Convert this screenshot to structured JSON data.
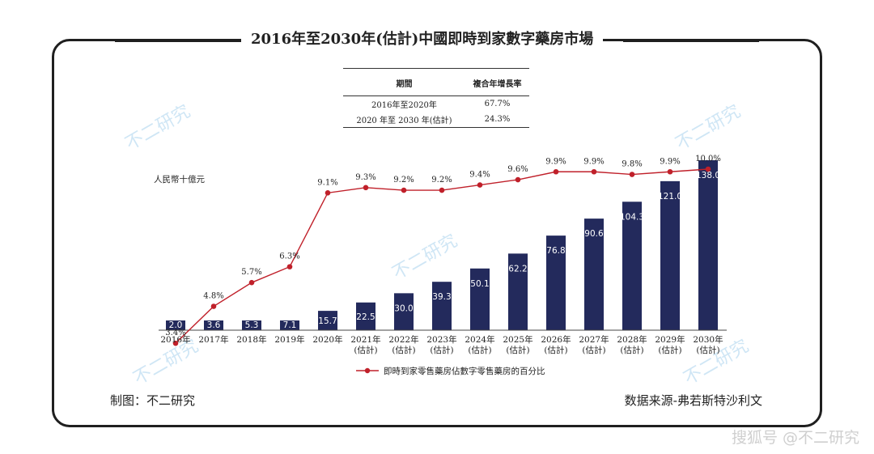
{
  "header": {
    "title": "2016年至2030年(估計)中國即時到家數字藥房市場"
  },
  "cagr_table": {
    "headers": [
      "期間",
      "複合年增長率"
    ],
    "rows": [
      [
        "2016年至2020年",
        "67.7%"
      ],
      [
        "2020 年至 2030 年(估計)",
        "24.3%"
      ]
    ]
  },
  "chart_data": {
    "type": "bar",
    "categories": [
      "2016年",
      "2017年",
      "2018年",
      "2019年",
      "2020年",
      "2021年\n(估計)",
      "2022年\n(估計)",
      "2023年\n(估計)",
      "2024年\n(估計)",
      "2025年\n(估計)",
      "2026年\n(估計)",
      "2027年\n(估計)",
      "2028年\n(估計)",
      "2029年\n(估計)",
      "2030年\n(估計)"
    ],
    "ylabel": "人民幣十億元",
    "series": [
      {
        "values": [
          2.0,
          3.6,
          5.3,
          7.1,
          15.7,
          22.5,
          30.0,
          39.3,
          50.1,
          62.2,
          76.8,
          90.6,
          104.3,
          121.0,
          138.0
        ],
        "labels": [
          "2.0",
          "3.6",
          "5.3",
          "7.1",
          "15.7",
          "22.5",
          "30.0",
          "39.3",
          "50.1",
          "62.2",
          "76.8",
          "90.6",
          "104.3",
          "121.0",
          "138.0"
        ],
        "color": "#232a5c"
      },
      {
        "name": "即時到家零售藥房佔數字零售藥房的百分比",
        "type": "line",
        "values": [
          3.4,
          4.8,
          5.7,
          6.3,
          9.1,
          9.3,
          9.2,
          9.2,
          9.4,
          9.6,
          9.9,
          9.9,
          9.8,
          9.9,
          10.0
        ],
        "labels": [
          "3.4%",
          "4.8%",
          "5.7%",
          "6.3%",
          "9.1%",
          "9.3%",
          "9.2%",
          "9.2%",
          "9.4%",
          "9.6%",
          "9.9%",
          "9.9%",
          "9.8%",
          "9.9%",
          "10.0%"
        ],
        "color": "#c0202a"
      }
    ],
    "legend_position": "bottom-center"
  },
  "footer": {
    "left": "制图：不二研究",
    "right": "数据来源-弗若斯特沙利文"
  },
  "watermarks": {
    "brand": "不二研究",
    "site": "搜狐号 @不二研究"
  }
}
